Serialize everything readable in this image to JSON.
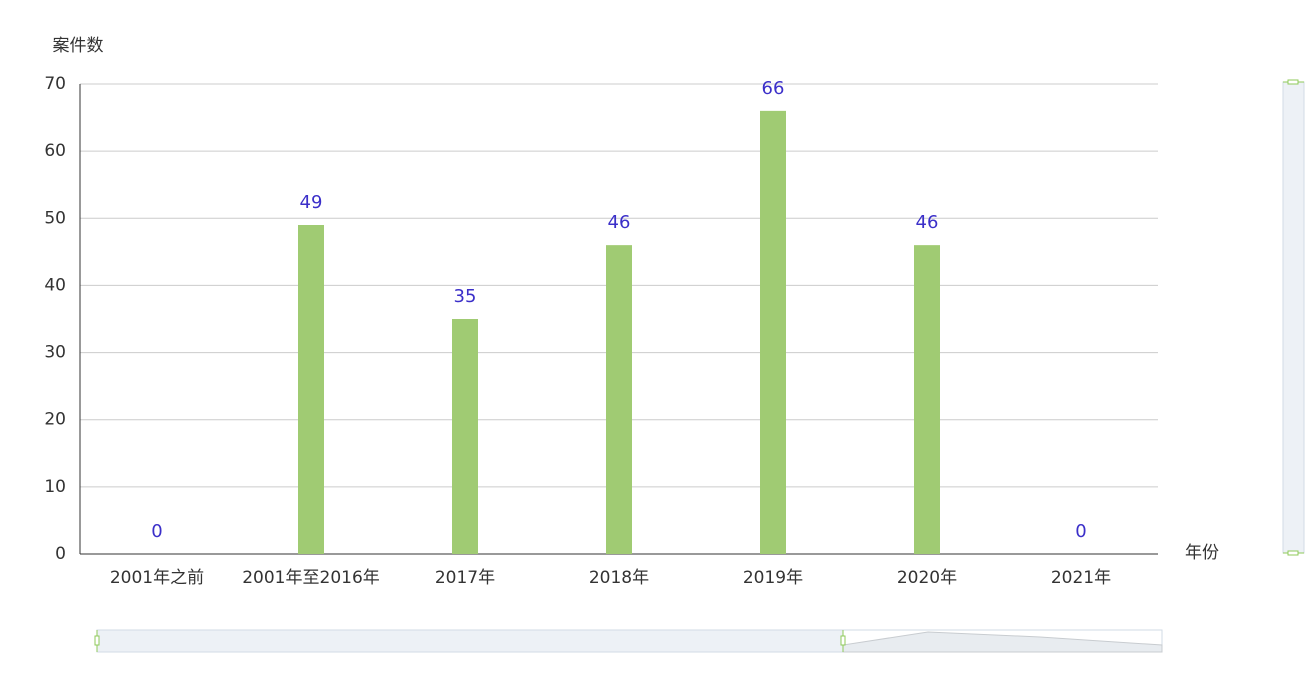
{
  "chart_data": {
    "type": "bar",
    "y_axis_name": "案件数",
    "x_axis_name": "年份",
    "categories": [
      "2001年之前",
      "2001年至2016年",
      "2017年",
      "2018年",
      "2019年",
      "2020年",
      "2021年"
    ],
    "values": [
      0,
      49,
      35,
      46,
      66,
      46,
      0
    ],
    "color": "#a0cb73",
    "label_color": "#3b2fc9",
    "ylim": [
      0,
      70
    ],
    "yticks": [
      0,
      10,
      20,
      30,
      40,
      50,
      60,
      70
    ],
    "grid": true
  }
}
